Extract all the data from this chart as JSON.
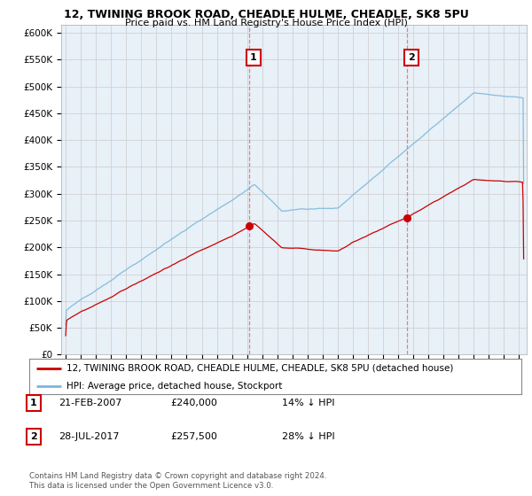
{
  "title_line1": "12, TWINING BROOK ROAD, CHEADLE HULME, CHEADLE, SK8 5PU",
  "title_line2": "Price paid vs. HM Land Registry's House Price Index (HPI)",
  "ylabel_ticks": [
    "£0",
    "£50K",
    "£100K",
    "£150K",
    "£200K",
    "£250K",
    "£300K",
    "£350K",
    "£400K",
    "£450K",
    "£500K",
    "£550K",
    "£600K"
  ],
  "ytick_values": [
    0,
    50000,
    100000,
    150000,
    200000,
    250000,
    300000,
    350000,
    400000,
    450000,
    500000,
    550000,
    600000
  ],
  "ylim": [
    0,
    615000
  ],
  "xlim_start": 1994.7,
  "xlim_end": 2025.5,
  "marker1_x": 2007.13,
  "marker1_y": 240000,
  "marker1_label": "1",
  "marker2_x": 2017.57,
  "marker2_y": 257500,
  "marker2_label": "2",
  "hpi_color": "#7ab8d9",
  "price_color": "#cc0000",
  "marker_color": "#cc0000",
  "vline_color": "#e88080",
  "plot_bg_color": "#e8f0f8",
  "legend_house_label": "12, TWINING BROOK ROAD, CHEADLE HULME, CHEADLE, SK8 5PU (detached house)",
  "legend_hpi_label": "HPI: Average price, detached house, Stockport",
  "table_data": [
    {
      "num": "1",
      "date": "21-FEB-2007",
      "price": "£240,000",
      "relation": "14% ↓ HPI"
    },
    {
      "num": "2",
      "date": "28-JUL-2017",
      "price": "£257,500",
      "relation": "28% ↓ HPI"
    }
  ],
  "footer_text": "Contains HM Land Registry data © Crown copyright and database right 2024.\nThis data is licensed under the Open Government Licence v3.0.",
  "background_color": "#ffffff",
  "grid_color": "#cccccc"
}
